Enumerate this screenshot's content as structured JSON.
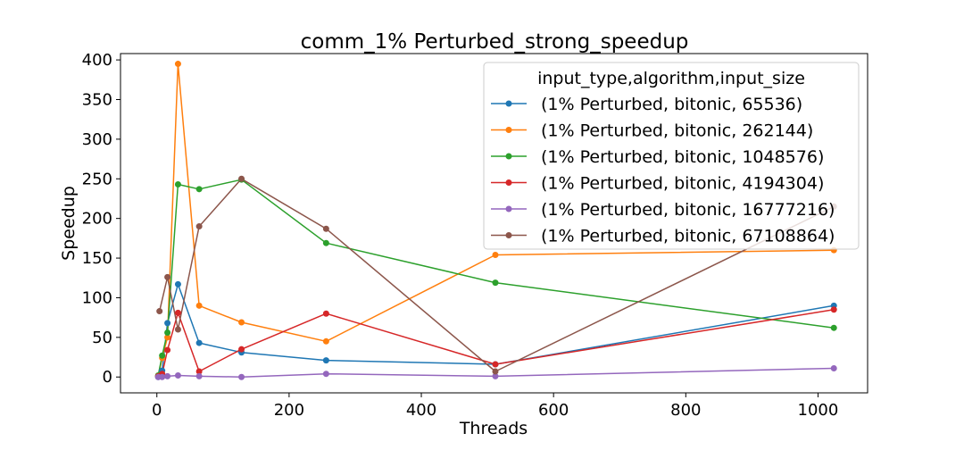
{
  "chart_data": {
    "type": "line",
    "title": "comm_1% Perturbed_strong_speedup",
    "xlabel": "Threads",
    "ylabel": "Speedup",
    "xlim": [
      -55,
      1075
    ],
    "ylim": [
      -20,
      408
    ],
    "xticks": [
      0,
      200,
      400,
      600,
      800,
      1000
    ],
    "yticks": [
      0,
      50,
      100,
      150,
      200,
      250,
      300,
      350,
      400
    ],
    "grid": false,
    "legend": {
      "title": "input_type,algorithm,input_size",
      "placement": "upper right"
    },
    "x": [
      2,
      4,
      8,
      16,
      32,
      64,
      128,
      256,
      512,
      1024
    ],
    "series": [
      {
        "name": "(1% Perturbed, bitonic, 65536)",
        "color": "#1f77b4",
        "values": [
          0,
          8,
          68,
          117,
          43,
          31,
          21,
          16,
          90,
          null
        ]
      },
      {
        "name": "(1% Perturbed, bitonic, 262144)",
        "color": "#ff7f0e",
        "values": [
          1,
          24,
          50,
          395,
          90,
          69,
          45,
          154,
          160,
          null
        ]
      },
      {
        "name": "(1% Perturbed, bitonic, 1048576)",
        "color": "#2ca02c",
        "values": [
          2,
          27,
          56,
          243,
          237,
          249,
          169,
          119,
          62,
          null
        ]
      },
      {
        "name": "(1% Perturbed, bitonic, 4194304)",
        "color": "#d62728",
        "values": [
          1,
          4,
          34,
          81,
          7,
          35,
          80,
          16,
          85,
          null
        ]
      },
      {
        "name": "(1% Perturbed, bitonic, 16777216)",
        "color": "#9467bd",
        "values": [
          0,
          0,
          1,
          2,
          1,
          0,
          4,
          1,
          11,
          null
        ]
      },
      {
        "name": "(1% Perturbed, bitonic, 67108864)",
        "color": "#8c564b",
        "values": [
          83,
          126,
          60,
          190,
          250,
          187,
          7,
          215,
          null,
          null
        ]
      }
    ],
    "series_x": {
      "(1% Perturbed, bitonic, 65536)": [
        2,
        8,
        16,
        32,
        64,
        128,
        256,
        512,
        1024
      ],
      "(1% Perturbed, bitonic, 262144)": [
        2,
        8,
        16,
        32,
        64,
        128,
        256,
        512,
        1024
      ],
      "(1% Perturbed, bitonic, 1048576)": [
        2,
        8,
        16,
        32,
        64,
        128,
        256,
        512,
        1024
      ],
      "(1% Perturbed, bitonic, 4194304)": [
        2,
        8,
        16,
        32,
        64,
        128,
        256,
        512,
        1024
      ],
      "(1% Perturbed, bitonic, 16777216)": [
        2,
        8,
        16,
        32,
        64,
        128,
        256,
        512,
        1024
      ],
      "(1% Perturbed, bitonic, 67108864)": [
        4,
        16,
        32,
        64,
        128,
        256,
        512,
        1024
      ]
    }
  }
}
